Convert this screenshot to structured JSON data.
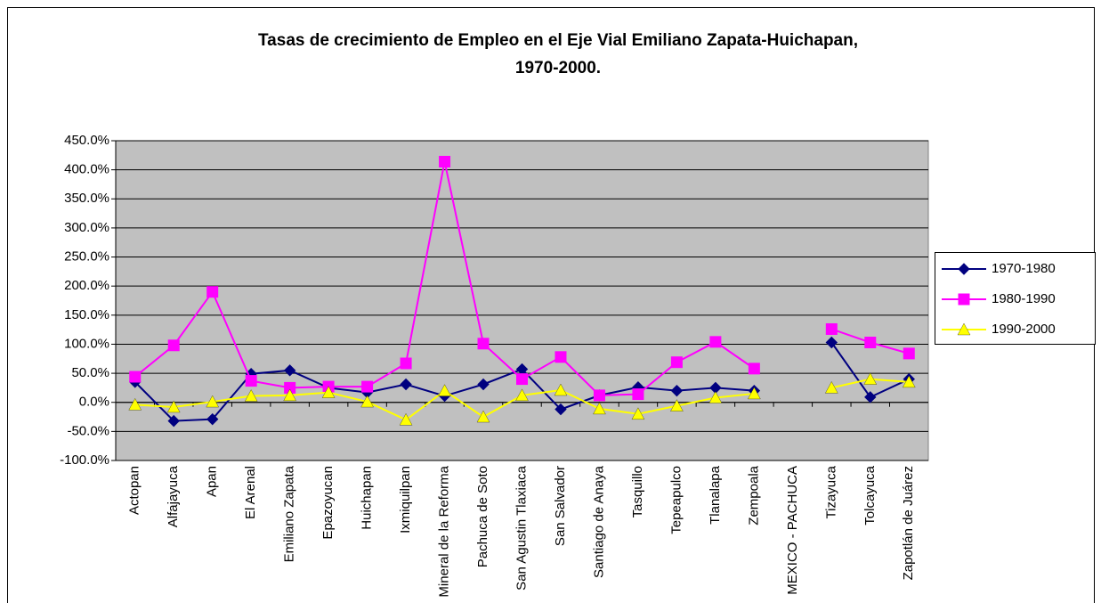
{
  "chart_data": {
    "type": "line",
    "title": [
      "Tasas de crecimiento de Empleo en el Eje Vial Emiliano Zapata-Huichapan,",
      "1970-2000."
    ],
    "categories": [
      "Actopan",
      "Alfajayuca",
      "Apan",
      "El Arenal",
      "Emiliano Zapata",
      "Epazoyucan",
      "Huichapan",
      "Ixmiquilpan",
      "Mineral de la Reforma",
      "Pachuca de Soto",
      "San Agustin Tlaxiaca",
      "San Salvador",
      "Santiago de Anaya",
      "Tasquillo",
      "Tepeapulco",
      "Tlanalapa",
      "Zempoala",
      "MEXICO - PACHUCA",
      "Tizayuca",
      "Tolcayuca",
      "Zapotlán de Juárez"
    ],
    "series": [
      {
        "name": "1970-1980",
        "color": "#000080",
        "marker": "diamond",
        "values": [
          35,
          -32,
          -29,
          49,
          55,
          25,
          17,
          31,
          11,
          31,
          57,
          -12,
          12,
          26,
          20,
          25,
          20,
          null,
          103,
          9,
          40
        ]
      },
      {
        "name": "1980-1990",
        "color": "#ff00ff",
        "marker": "square",
        "values": [
          44,
          98,
          190,
          37,
          25,
          27,
          27,
          67,
          414,
          101,
          40,
          78,
          12,
          14,
          69,
          104,
          58,
          null,
          126,
          103,
          84
        ]
      },
      {
        "name": "1990-2000",
        "color": "#ffff00",
        "marker": "triangle",
        "values": [
          -4,
          -8,
          1,
          11,
          12,
          17,
          1,
          -30,
          20,
          -25,
          12,
          21,
          -11,
          -20,
          -6,
          8,
          15,
          null,
          25,
          40,
          35
        ]
      }
    ],
    "ylim": [
      -100,
      450
    ],
    "yticks": [
      {
        "value": -100,
        "label": "-100.0%"
      },
      {
        "value": -50,
        "label": "-50.0%"
      },
      {
        "value": 0,
        "label": "0.0%"
      },
      {
        "value": 50,
        "label": "50.0%"
      },
      {
        "value": 100,
        "label": "100.0%"
      },
      {
        "value": 150,
        "label": "150.0%"
      },
      {
        "value": 200,
        "label": "200.0%"
      },
      {
        "value": 250,
        "label": "250.0%"
      },
      {
        "value": 300,
        "label": "300.0%"
      },
      {
        "value": 350,
        "label": "350.0%"
      },
      {
        "value": 400,
        "label": "400.0%"
      },
      {
        "value": 450,
        "label": "450.0%"
      }
    ],
    "grid": true,
    "legend": "right"
  }
}
